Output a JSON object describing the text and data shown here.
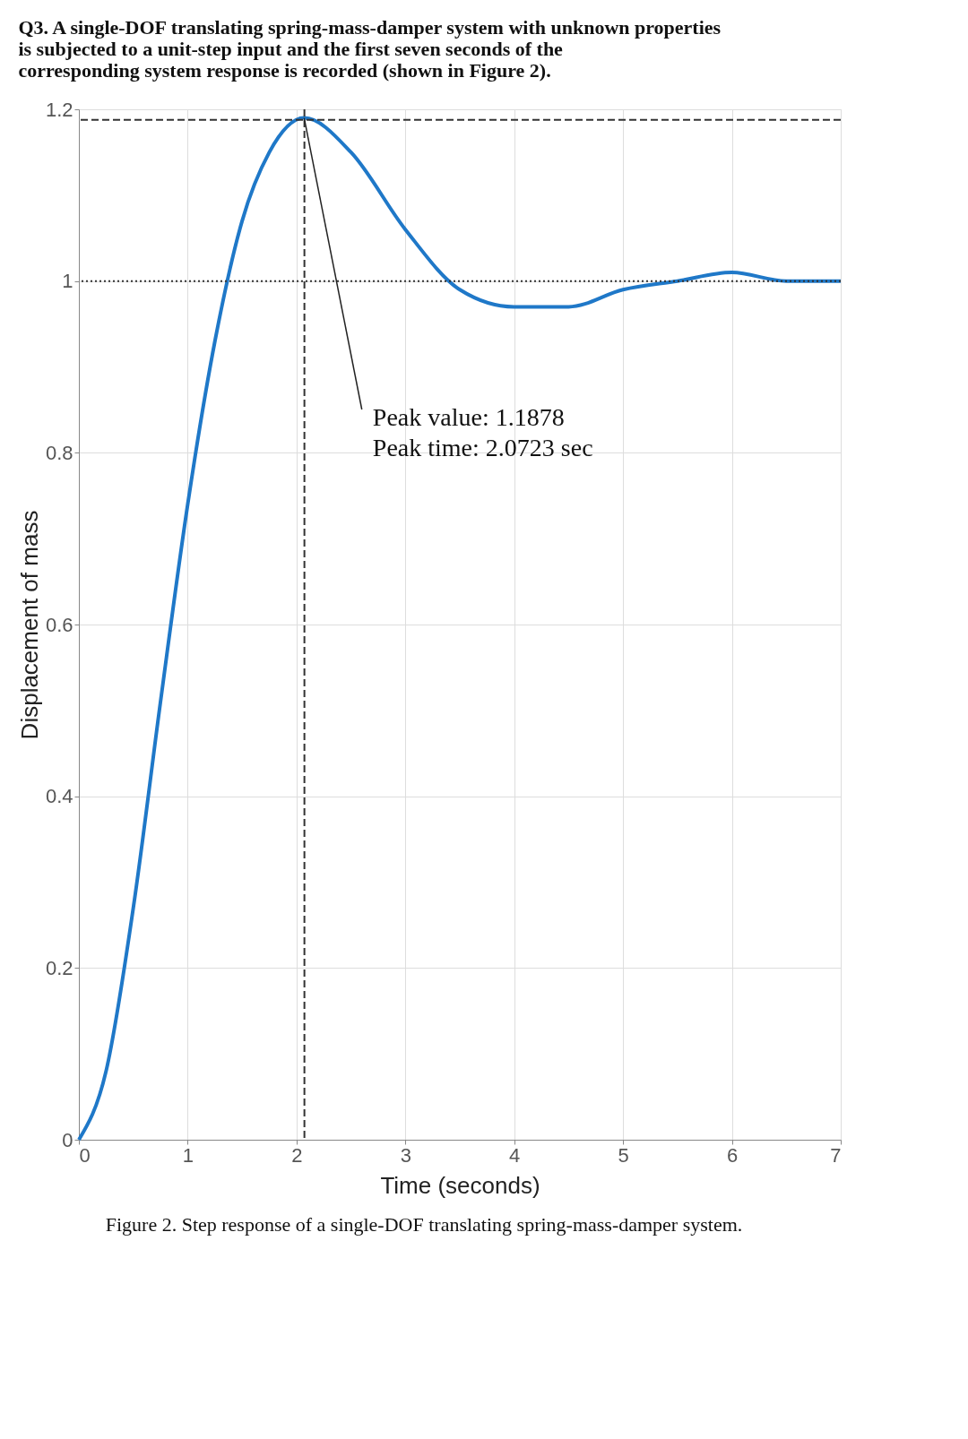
{
  "chart_data": {
    "type": "line",
    "title": "Q3. A single-DOF translating spring-mass-damper system with unknown properties is subjected to a unit-step input and the first seven seconds of the corresponding system response is recorded (shown in Figure 2).",
    "xlabel": "Time (seconds)",
    "ylabel": "Displacement of mass",
    "series": [
      {
        "color": "#1f78c8",
        "line_style": "solid",
        "x": [
          0,
          0.25,
          0.5,
          0.75,
          1.0,
          1.25,
          1.5,
          1.75,
          2.07,
          2.5,
          3.0,
          3.5,
          4.0,
          4.5,
          5.0,
          5.5,
          6.0,
          6.5,
          7.0
        ],
        "values": [
          0,
          0.08,
          0.27,
          0.51,
          0.74,
          0.93,
          1.07,
          1.15,
          1.19,
          1.15,
          1.06,
          0.99,
          0.97,
          0.97,
          0.99,
          1.0,
          1.01,
          1.0,
          1.0
        ]
      }
    ],
    "xlim": [
      0,
      7
    ],
    "xticks": [
      0,
      1,
      2,
      3,
      4,
      5,
      6,
      7
    ],
    "ylim": [
      0,
      1.2
    ],
    "yticks": [
      0,
      0.2,
      0.4,
      0.6,
      0.8,
      1,
      1.2
    ],
    "grid": true,
    "ref_lines": [
      {
        "axis": "y",
        "value": 1,
        "line_style": "dotted",
        "color": "#333333"
      },
      {
        "axis": "y",
        "value": 1.1878,
        "line_style": "dashed",
        "color": "#333333"
      },
      {
        "axis": "x",
        "value": 2.0723,
        "line_style": "dashed",
        "color": "#333333"
      }
    ],
    "annotations": [
      {
        "text": "Peak value: 1.1878",
        "x": 2.07,
        "y": 1.19
      },
      "Peak time: 2.0723 sec",
      "Figure 2. Step response of a single-DOF translating spring-mass-damper system."
    ]
  }
}
